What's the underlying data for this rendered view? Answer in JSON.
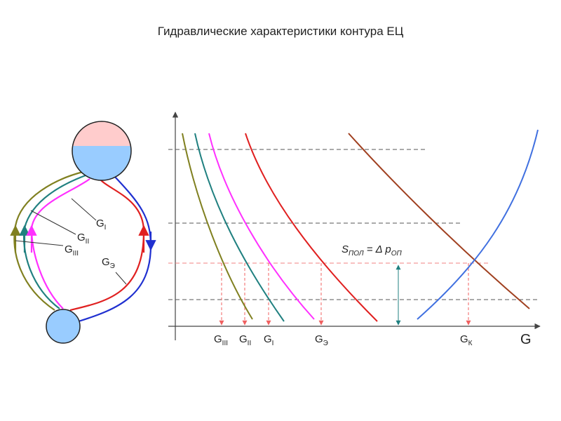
{
  "title": "Гидравлические характеристики контура ЕЦ",
  "circuit": {
    "labels": [
      {
        "base": "G",
        "sub": "I"
      },
      {
        "base": "G",
        "sub": "II"
      },
      {
        "base": "G",
        "sub": "III"
      },
      {
        "base": "G",
        "sub": "Э"
      }
    ]
  },
  "graph": {
    "axis_label": "G",
    "formula": {
      "s": "S",
      "s_sub": "ПОЛ",
      "rel": " = Δ p",
      "p_sub": "ОП"
    },
    "flow_labels": [
      {
        "base": "G",
        "sub": "III"
      },
      {
        "base": "G",
        "sub": "II"
      },
      {
        "base": "G",
        "sub": "I"
      },
      {
        "base": "G",
        "sub": "Э"
      },
      {
        "base": "G",
        "sub": "К"
      }
    ]
  }
}
